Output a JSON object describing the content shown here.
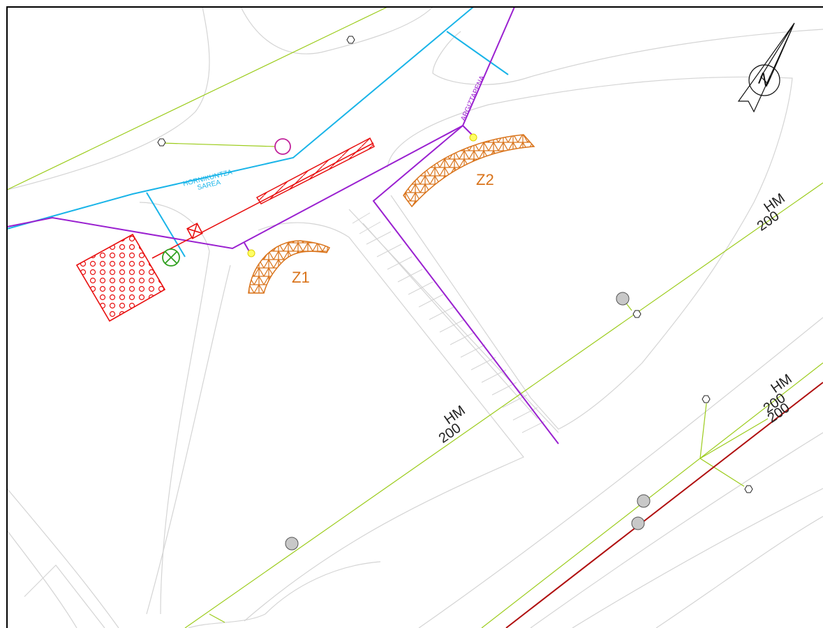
{
  "labels": {
    "supply_network": [
      "HORNIKUNTZA",
      "SAREA"
    ],
    "lighting": "ARGIZTAPENA",
    "zone_1": "Z1",
    "zone_2": "Z2",
    "north": "N"
  },
  "pipes": [
    {
      "type": "HM",
      "diameter": "200"
    },
    {
      "type": "HM",
      "diameter": "200"
    },
    {
      "type": "HM",
      "diameter": "200"
    },
    {
      "diameter": "200"
    }
  ]
}
